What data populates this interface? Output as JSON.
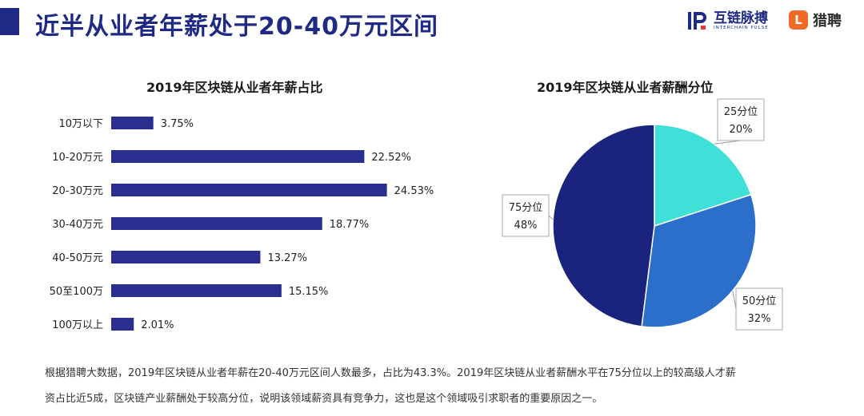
{
  "header": {
    "title": "近半从业者年薪处于20-40万元区间",
    "brand_name": "互链脉搏",
    "brand_sub": "INTERCHAIN PULSE",
    "partner_name": "猎聘"
  },
  "colors": {
    "primary": "#1f2a87",
    "bar": "#2a2f8f",
    "pie_25": "#3ee0d8",
    "pie_50": "#2b6fcb",
    "pie_75": "#1a237e",
    "accent_orange": "#f06a25"
  },
  "chart_data": [
    {
      "type": "bar",
      "orientation": "horizontal",
      "title": "2019年区块链从业者年薪占比",
      "categories": [
        "10万以下",
        "10-20万元",
        "20-30万元",
        "30-40万元",
        "40-50万元",
        "50至100万",
        "100万以上"
      ],
      "values": [
        3.75,
        22.52,
        24.53,
        18.77,
        13.27,
        15.15,
        2.01
      ],
      "value_labels": [
        "3.75%",
        "22.52%",
        "24.53%",
        "18.77%",
        "13.27%",
        "15.15%",
        "2.01%"
      ],
      "unit": "%",
      "grid": false
    },
    {
      "type": "pie",
      "title": "2019年区块链从业者薪酬分位",
      "slices": [
        {
          "label": "25分位",
          "value": 20,
          "value_label": "20%",
          "color": "#3ee0d8"
        },
        {
          "label": "50分位",
          "value": 32,
          "value_label": "32%",
          "color": "#2b6fcb"
        },
        {
          "label": "75分位",
          "value": 48,
          "value_label": "48%",
          "color": "#1a237e"
        }
      ],
      "start": "top",
      "direction": "clockwise"
    }
  ],
  "footer": {
    "line1": "根据猎聘大数据，2019年区块链从业者年薪在20-40万元区间人数最多，占比为43.3%。2019年区块链从业者薪酬水平在75分位以上的较高级人才薪",
    "line2": "资占比近5成，区块链产业薪酬处于较高分位，说明该领域薪资具有竞争力，这也是这个领域吸引求职者的重要原因之一。"
  }
}
